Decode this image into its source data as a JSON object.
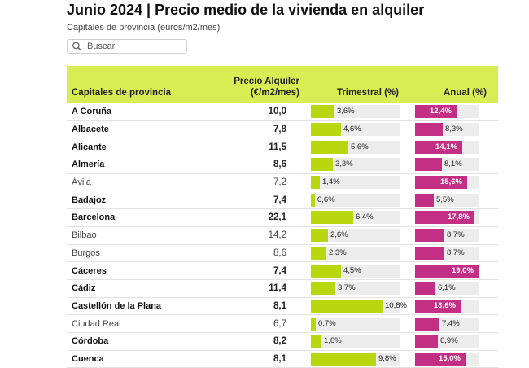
{
  "title": "Junio 2024 | Precio medio de la vivienda en alquiler",
  "subtitle": "Capitales de provincia (euros/m2/mes)",
  "search": {
    "placeholder": "Buscar",
    "icon": "search-icon"
  },
  "colors": {
    "header_bg": "#d8ec54",
    "trimestral_bar": "#b8d70f",
    "anual_bar": "#c42f86",
    "track": "#ececec"
  },
  "columns": {
    "capital": "Capitales de provincia",
    "precio": "Precio Alquiler (€/m2/mes)",
    "trimestral": "Trimestral (%)",
    "anual": "Anual (%)"
  },
  "rows": [
    {
      "name": "A Coruña",
      "bold": true,
      "price": "10,0",
      "trim_label": "3,6%",
      "trim": 3.6,
      "anual_label": "12,4%",
      "anual": 12.4
    },
    {
      "name": "Albacete",
      "bold": true,
      "price": "7,8",
      "trim_label": "4,6%",
      "trim": 4.6,
      "anual_label": "8,3%",
      "anual": 8.3
    },
    {
      "name": "Alicante",
      "bold": true,
      "price": "11,5",
      "trim_label": "5,6%",
      "trim": 5.6,
      "anual_label": "14,1%",
      "anual": 14.1
    },
    {
      "name": "Almería",
      "bold": true,
      "price": "8,6",
      "trim_label": "3,3%",
      "trim": 3.3,
      "anual_label": "8,1%",
      "anual": 8.1
    },
    {
      "name": "Ávila",
      "bold": false,
      "price": "7,2",
      "trim_label": "1,4%",
      "trim": 1.4,
      "anual_label": "15,6%",
      "anual": 15.6
    },
    {
      "name": "Badajoz",
      "bold": true,
      "price": "7,4",
      "trim_label": "0,6%",
      "trim": 0.6,
      "anual_label": "5,5%",
      "anual": 5.5
    },
    {
      "name": "Barcelona",
      "bold": true,
      "price": "22,1",
      "trim_label": "6,4%",
      "trim": 6.4,
      "anual_label": "17,8%",
      "anual": 17.8
    },
    {
      "name": "Bilbao",
      "bold": false,
      "price": "14,2",
      "trim_label": "2,6%",
      "trim": 2.6,
      "anual_label": "8,7%",
      "anual": 8.7
    },
    {
      "name": "Burgos",
      "bold": false,
      "price": "8,6",
      "trim_label": "2,3%",
      "trim": 2.3,
      "anual_label": "8,7%",
      "anual": 8.7
    },
    {
      "name": "Cáceres",
      "bold": true,
      "price": "7,4",
      "trim_label": "4,5%",
      "trim": 4.5,
      "anual_label": "19,0%",
      "anual": 19.0
    },
    {
      "name": "Cádiz",
      "bold": true,
      "price": "11,4",
      "trim_label": "3,7%",
      "trim": 3.7,
      "anual_label": "6,1%",
      "anual": 6.1
    },
    {
      "name": "Castellón de la Plana",
      "bold": true,
      "price": "8,1",
      "trim_label": "10,8%",
      "trim": 10.8,
      "anual_label": "13,6%",
      "anual": 13.6
    },
    {
      "name": "Ciudad Real",
      "bold": false,
      "price": "6,7",
      "trim_label": "0,7%",
      "trim": 0.7,
      "anual_label": "7,4%",
      "anual": 7.4
    },
    {
      "name": "Córdoba",
      "bold": true,
      "price": "8,2",
      "trim_label": "1,6%",
      "trim": 1.6,
      "anual_label": "6,9%",
      "anual": 6.9
    },
    {
      "name": "Cuenca",
      "bold": true,
      "price": "8,1",
      "trim_label": "9,8%",
      "trim": 9.8,
      "anual_label": "15,0%",
      "anual": 15.0
    }
  ]
}
